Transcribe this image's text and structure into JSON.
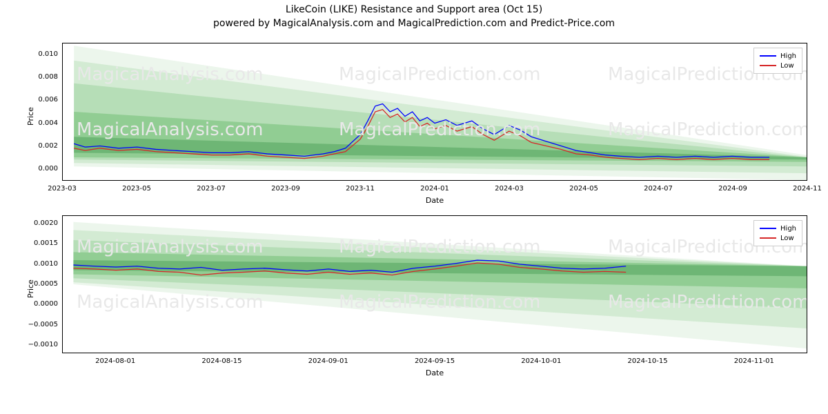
{
  "title": "LikeCoin (LIKE) Resistance and Support area (Oct 15)",
  "subtitle": "powered by MagicalAnalysis.com and MagicalPrediction.com and Predict-Price.com",
  "watermark_texts": [
    "MagicalAnalysis.com",
    "MagicalPrediction.com"
  ],
  "watermark_color": "#e8e8e8",
  "line_colors": {
    "high": "#0000ff",
    "low": "#d62728"
  },
  "band_colors": [
    "#2e8b3f",
    "#4caf50",
    "#81c784",
    "#a5d6a7",
    "#c8e6c9"
  ],
  "band_base_opacity": 0.35,
  "legend": {
    "items": [
      {
        "label": "High",
        "color": "#0000ff"
      },
      {
        "label": "Low",
        "color": "#d62728"
      }
    ]
  },
  "chart_top": {
    "type": "line_with_bands",
    "xlabel": "Date",
    "ylabel": "Price",
    "background_color": "#ffffff",
    "border_color": "#000000",
    "ylim": [
      -0.001,
      0.011
    ],
    "yticks": [
      0.0,
      0.002,
      0.004,
      0.006,
      0.008,
      0.01
    ],
    "ytick_labels": [
      "0.000",
      "0.002",
      "0.004",
      "0.006",
      "0.008",
      "0.010"
    ],
    "x_range": [
      0,
      20
    ],
    "xtick_positions": [
      0,
      2,
      4,
      6,
      8,
      10,
      12,
      14,
      16,
      18,
      20
    ],
    "xtick_labels": [
      "2023-03",
      "2023-05",
      "2023-07",
      "2023-09",
      "2023-11",
      "2024-01",
      "2024-03",
      "2024-05",
      "2024-07",
      "2024-09",
      "2024-11"
    ],
    "bands": [
      {
        "top_start": 0.0108,
        "top_end": 0.0012,
        "bot_start": 0.0002,
        "bot_end": -0.001,
        "x_start": 0.3,
        "x_end": 20,
        "color_idx": 4
      },
      {
        "top_start": 0.0095,
        "top_end": 0.00105,
        "bot_start": 0.0005,
        "bot_end": -0.0004,
        "x_start": 0.3,
        "x_end": 20,
        "color_idx": 3
      },
      {
        "top_start": 0.0075,
        "top_end": 0.001,
        "bot_start": 0.0008,
        "bot_end": 0.0002,
        "x_start": 0.3,
        "x_end": 20,
        "color_idx": 2
      },
      {
        "top_start": 0.005,
        "top_end": 0.001,
        "bot_start": 0.001,
        "bot_end": 0.0006,
        "x_start": 0.3,
        "x_end": 20,
        "color_idx": 1
      },
      {
        "top_start": 0.0028,
        "top_end": 0.001,
        "bot_start": 0.0014,
        "bot_end": 0.0008,
        "x_start": 0.3,
        "x_end": 20,
        "color_idx": 0
      }
    ],
    "series_high": [
      [
        0.3,
        0.0022
      ],
      [
        0.6,
        0.0019
      ],
      [
        1,
        0.002
      ],
      [
        1.5,
        0.0018
      ],
      [
        2,
        0.0019
      ],
      [
        2.5,
        0.0017
      ],
      [
        3,
        0.0016
      ],
      [
        3.5,
        0.0015
      ],
      [
        4,
        0.0014
      ],
      [
        4.5,
        0.0014
      ],
      [
        5,
        0.0015
      ],
      [
        5.5,
        0.0013
      ],
      [
        6,
        0.0012
      ],
      [
        6.5,
        0.0011
      ],
      [
        7,
        0.0013
      ],
      [
        7.3,
        0.0015
      ],
      [
        7.6,
        0.0018
      ],
      [
        8,
        0.003
      ],
      [
        8.2,
        0.0042
      ],
      [
        8.4,
        0.0055
      ],
      [
        8.6,
        0.0057
      ],
      [
        8.8,
        0.005
      ],
      [
        9,
        0.0053
      ],
      [
        9.2,
        0.0046
      ],
      [
        9.4,
        0.005
      ],
      [
        9.6,
        0.0042
      ],
      [
        9.8,
        0.0045
      ],
      [
        10,
        0.004
      ],
      [
        10.3,
        0.0043
      ],
      [
        10.6,
        0.0038
      ],
      [
        11,
        0.0042
      ],
      [
        11.3,
        0.0035
      ],
      [
        11.6,
        0.003
      ],
      [
        12,
        0.0038
      ],
      [
        12.3,
        0.0034
      ],
      [
        12.6,
        0.0028
      ],
      [
        13,
        0.0024
      ],
      [
        13.4,
        0.002
      ],
      [
        13.8,
        0.0016
      ],
      [
        14.2,
        0.0014
      ],
      [
        14.6,
        0.0012
      ],
      [
        15,
        0.0011
      ],
      [
        15.5,
        0.001
      ],
      [
        16,
        0.0011
      ],
      [
        16.5,
        0.001
      ],
      [
        17,
        0.0011
      ],
      [
        17.5,
        0.001
      ],
      [
        18,
        0.0011
      ],
      [
        18.5,
        0.001
      ],
      [
        19,
        0.001
      ]
    ],
    "series_low": [
      [
        0.3,
        0.0018
      ],
      [
        0.6,
        0.0016
      ],
      [
        1,
        0.0018
      ],
      [
        1.5,
        0.0016
      ],
      [
        2,
        0.0017
      ],
      [
        2.5,
        0.0015
      ],
      [
        3,
        0.0014
      ],
      [
        3.5,
        0.0013
      ],
      [
        4,
        0.0012
      ],
      [
        4.5,
        0.0012
      ],
      [
        5,
        0.0013
      ],
      [
        5.5,
        0.0011
      ],
      [
        6,
        0.001
      ],
      [
        6.5,
        0.0009
      ],
      [
        7,
        0.0011
      ],
      [
        7.3,
        0.0013
      ],
      [
        7.6,
        0.0015
      ],
      [
        8,
        0.0026
      ],
      [
        8.2,
        0.0037
      ],
      [
        8.4,
        0.005
      ],
      [
        8.6,
        0.0052
      ],
      [
        8.8,
        0.0045
      ],
      [
        9,
        0.0048
      ],
      [
        9.2,
        0.0041
      ],
      [
        9.4,
        0.0045
      ],
      [
        9.6,
        0.0037
      ],
      [
        9.8,
        0.004
      ],
      [
        10,
        0.0035
      ],
      [
        10.3,
        0.0038
      ],
      [
        10.6,
        0.0033
      ],
      [
        11,
        0.0037
      ],
      [
        11.3,
        0.003
      ],
      [
        11.6,
        0.0025
      ],
      [
        12,
        0.0033
      ],
      [
        12.3,
        0.0029
      ],
      [
        12.6,
        0.0023
      ],
      [
        13,
        0.002
      ],
      [
        13.4,
        0.0017
      ],
      [
        13.8,
        0.0013
      ],
      [
        14.2,
        0.0012
      ],
      [
        14.6,
        0.001
      ],
      [
        15,
        0.0009
      ],
      [
        15.5,
        0.0008
      ],
      [
        16,
        0.0009
      ],
      [
        16.5,
        0.0008
      ],
      [
        17,
        0.0009
      ],
      [
        17.5,
        0.0008
      ],
      [
        18,
        0.0009
      ],
      [
        18.5,
        0.0008
      ],
      [
        19,
        0.0008
      ]
    ]
  },
  "chart_bottom": {
    "type": "line_with_bands",
    "xlabel": "Date",
    "ylabel": "Price",
    "background_color": "#ffffff",
    "border_color": "#000000",
    "ylim": [
      -0.0012,
      0.0022
    ],
    "yticks": [
      -0.001,
      -0.0005,
      0.0,
      0.0005,
      0.001,
      0.0015,
      0.002
    ],
    "ytick_labels": [
      "−0.0010",
      "−0.0005",
      "0.0000",
      "0.0005",
      "0.0010",
      "0.0015",
      "0.0020"
    ],
    "x_range": [
      0,
      14
    ],
    "xtick_positions": [
      1,
      3,
      5,
      7,
      9,
      11,
      13
    ],
    "xtick_labels": [
      "2024-08-01",
      "2024-08-15",
      "2024-09-01",
      "2024-09-15",
      "2024-10-01",
      "2024-10-15",
      "2024-11-01"
    ],
    "bands": [
      {
        "top_start": 0.00205,
        "top_end": 0.00095,
        "bot_start": 0.0005,
        "bot_end": -0.0011,
        "x_start": 0.2,
        "x_end": 14,
        "color_idx": 4
      },
      {
        "top_start": 0.00185,
        "top_end": 0.00095,
        "bot_start": 0.00055,
        "bot_end": -0.0006,
        "x_start": 0.2,
        "x_end": 14,
        "color_idx": 3
      },
      {
        "top_start": 0.0016,
        "top_end": 0.00095,
        "bot_start": 0.00065,
        "bot_end": -0.0001,
        "x_start": 0.2,
        "x_end": 14,
        "color_idx": 2
      },
      {
        "top_start": 0.0013,
        "top_end": 0.00095,
        "bot_start": 0.00075,
        "bot_end": 0.0004,
        "x_start": 0.2,
        "x_end": 14,
        "color_idx": 1
      },
      {
        "top_start": 0.0011,
        "top_end": 0.00095,
        "bot_start": 0.00085,
        "bot_end": 0.0007,
        "x_start": 0.2,
        "x_end": 14,
        "color_idx": 0
      }
    ],
    "series_high": [
      [
        0.2,
        0.00098
      ],
      [
        0.6,
        0.00095
      ],
      [
        1,
        0.00093
      ],
      [
        1.4,
        0.00095
      ],
      [
        1.8,
        0.0009
      ],
      [
        2.2,
        0.00088
      ],
      [
        2.6,
        0.00092
      ],
      [
        3,
        0.00085
      ],
      [
        3.4,
        0.00088
      ],
      [
        3.8,
        0.0009
      ],
      [
        4.2,
        0.00086
      ],
      [
        4.6,
        0.00083
      ],
      [
        5,
        0.00088
      ],
      [
        5.4,
        0.00082
      ],
      [
        5.8,
        0.00085
      ],
      [
        6.2,
        0.0008
      ],
      [
        6.6,
        0.0009
      ],
      [
        7,
        0.00095
      ],
      [
        7.4,
        0.00102
      ],
      [
        7.8,
        0.0011
      ],
      [
        8.2,
        0.00108
      ],
      [
        8.6,
        0.001
      ],
      [
        9,
        0.00095
      ],
      [
        9.4,
        0.0009
      ],
      [
        9.8,
        0.00088
      ],
      [
        10.2,
        0.0009
      ],
      [
        10.6,
        0.00095
      ]
    ],
    "series_low": [
      [
        0.2,
        0.0009
      ],
      [
        0.6,
        0.00088
      ],
      [
        1,
        0.00085
      ],
      [
        1.4,
        0.00088
      ],
      [
        1.8,
        0.00082
      ],
      [
        2.2,
        0.0008
      ],
      [
        2.6,
        0.00073
      ],
      [
        3,
        0.00078
      ],
      [
        3.4,
        0.0008
      ],
      [
        3.8,
        0.00083
      ],
      [
        4.2,
        0.00078
      ],
      [
        4.6,
        0.00075
      ],
      [
        5,
        0.0008
      ],
      [
        5.4,
        0.00075
      ],
      [
        5.8,
        0.00078
      ],
      [
        6.2,
        0.00073
      ],
      [
        6.6,
        0.00082
      ],
      [
        7,
        0.00088
      ],
      [
        7.4,
        0.00095
      ],
      [
        7.8,
        0.00103
      ],
      [
        8.2,
        0.001
      ],
      [
        8.6,
        0.00092
      ],
      [
        9,
        0.00088
      ],
      [
        9.4,
        0.00083
      ],
      [
        9.8,
        0.0008
      ],
      [
        10.2,
        0.00082
      ],
      [
        10.6,
        0.0008
      ]
    ]
  }
}
